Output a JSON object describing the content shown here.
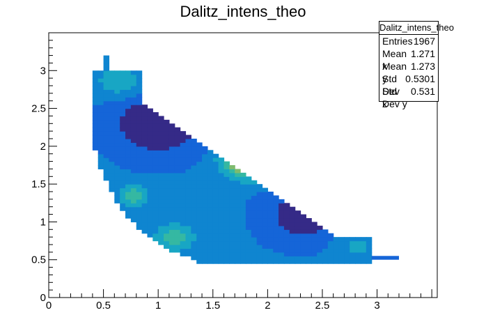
{
  "chart_data": {
    "type": "heatmap",
    "title": "Dalitz_intens_theo",
    "xlim": [
      0,
      3.55
    ],
    "ylim": [
      0,
      3.5
    ],
    "x_ticks": [
      "0",
      "0.5",
      "1",
      "1.5",
      "2",
      "2.5",
      "3"
    ],
    "y_ticks": [
      "0",
      "0.5",
      "1",
      "1.5",
      "2",
      "2.5",
      "3"
    ],
    "grid": false,
    "palette": "kBird",
    "color_scale": [
      "#352a87",
      "#1565d8",
      "#0f85d0",
      "#18a6c4",
      "#35b8a2",
      "#7fbb6f",
      "#c8bd46",
      "#f6d92b",
      "#fdf90f"
    ],
    "intensity_description": "bands of high intensity near the kinematic boundary",
    "stats": {
      "title": "Dalitz_intens_theo",
      "entries_label": "Entries",
      "entries": "1967",
      "mean_x_label": "Mean x",
      "mean_x": "1.271",
      "mean_y_label": "Mean y",
      "mean_y": "1.273",
      "std_x_label": "Std Dev x",
      "std_x": "0.5301",
      "std_y_label": "Std Dev y",
      "std_y": "0.531"
    }
  }
}
